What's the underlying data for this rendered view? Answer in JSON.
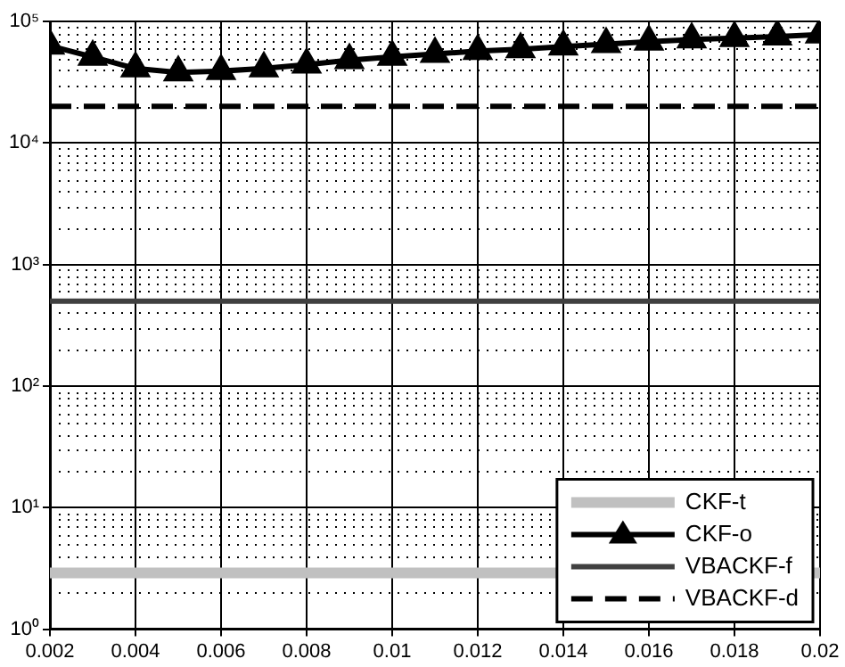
{
  "chart_data": {
    "type": "line",
    "x": [
      0.002,
      0.003,
      0.004,
      0.005,
      0.006,
      0.007,
      0.008,
      0.009,
      0.01,
      0.011,
      0.012,
      0.013,
      0.014,
      0.015,
      0.016,
      0.017,
      0.018,
      0.019,
      0.02
    ],
    "series": [
      {
        "name": "CKF-t",
        "color": "#c0c0c0",
        "marker": "none",
        "line_style": "solid",
        "values": [
          2.9,
          2.9,
          2.9,
          2.9,
          2.9,
          2.9,
          2.9,
          2.9,
          2.9,
          2.9,
          2.9,
          2.9,
          null,
          null,
          null,
          null,
          null,
          null,
          2.9
        ]
      },
      {
        "name": "CKF-o",
        "color": "#000000",
        "marker": "triangle",
        "line_style": "solid",
        "values": [
          63000,
          51000,
          41000,
          38000,
          39000,
          41000,
          44000,
          48000,
          51000,
          54000,
          57000,
          59000,
          62000,
          65000,
          68000,
          71000,
          73000,
          75000,
          78000
        ]
      },
      {
        "name": "VBACKF-f",
        "color": "#404040",
        "marker": "none",
        "line_style": "solid",
        "values": [
          500,
          500,
          500,
          500,
          500,
          500,
          500,
          500,
          500,
          500,
          500,
          500,
          500,
          500,
          500,
          500,
          500,
          500,
          500
        ]
      },
      {
        "name": "VBACKF-d",
        "color": "#000000",
        "marker": "none",
        "line_style": "dashed",
        "values": [
          20000,
          20000,
          20000,
          20000,
          20000,
          20000,
          20000,
          20000,
          20000,
          20000,
          20000,
          20000,
          20000,
          20000,
          20000,
          20000,
          20000,
          20000,
          20000
        ]
      }
    ],
    "xlim": [
      0.002,
      0.02
    ],
    "xticks": [
      0.002,
      0.004,
      0.006,
      0.008,
      0.01,
      0.012,
      0.014,
      0.016,
      0.018,
      0.02
    ],
    "log": "y",
    "ylim": [
      1,
      100000
    ],
    "yticks": [
      {
        "value": 1,
        "label": "10⁰"
      },
      {
        "value": 10,
        "label": "10¹"
      },
      {
        "value": 100,
        "label": "10²"
      },
      {
        "value": 1000,
        "label": "10³"
      },
      {
        "value": 10000,
        "label": "10⁴"
      },
      {
        "value": 100000,
        "label": "10⁵"
      }
    ],
    "grid": true,
    "legend": "bottom right"
  }
}
